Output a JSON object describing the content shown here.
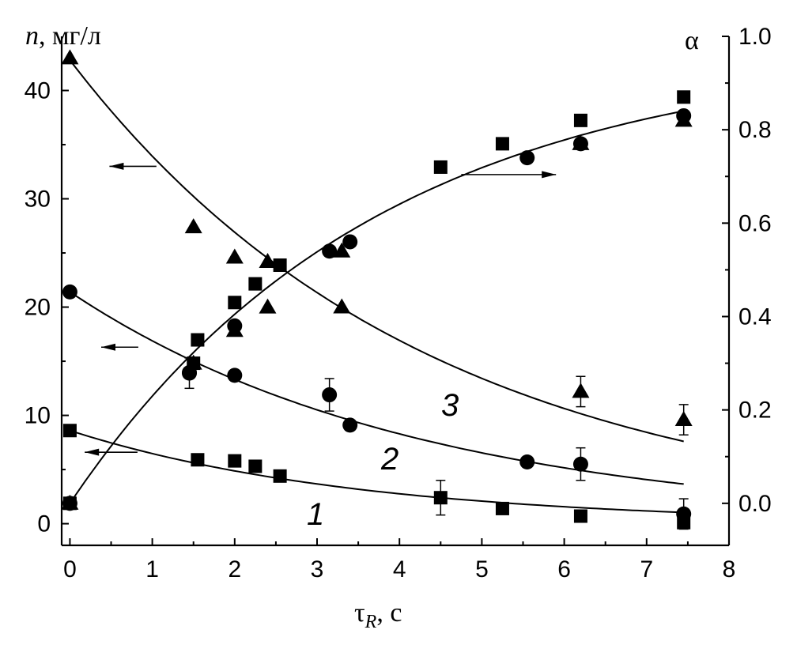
{
  "chart_data": {
    "type": "scatter",
    "x_axis": {
      "label_main": "τ",
      "label_sub": "R",
      "label_unit": ", с",
      "range": [
        -0.1,
        8
      ],
      "ticks": [
        0,
        1,
        2,
        3,
        4,
        5,
        6,
        7,
        8
      ]
    },
    "y_left": {
      "label_var": "n",
      "label_unit": ", мг/л",
      "range": [
        -2,
        45
      ],
      "ticks": [
        0,
        10,
        20,
        30,
        40
      ]
    },
    "y_right": {
      "label": "α",
      "range": [
        -0.09,
        1.0
      ],
      "ticks": [
        0.0,
        0.2,
        0.4,
        0.6,
        0.8,
        1.0
      ],
      "tick_labels": [
        "0.0",
        "0.2",
        "0.4",
        "0.6",
        "0.8",
        "1.0"
      ]
    },
    "curve_labels": [
      "1",
      "2",
      "3"
    ],
    "n_series": [
      {
        "curve": "1",
        "marker": "square",
        "axis": "left",
        "points": [
          [
            0,
            8.6
          ],
          [
            1.55,
            5.9
          ],
          [
            2.0,
            5.8
          ],
          [
            2.25,
            5.3
          ],
          [
            2.55,
            4.4
          ],
          [
            4.5,
            2.4
          ],
          [
            5.25,
            1.4
          ],
          [
            6.2,
            0.7
          ],
          [
            7.45,
            0.1
          ]
        ],
        "errors": [
          [
            4.5,
            1.6
          ]
        ],
        "fit": {
          "a": 8.6,
          "k": 0.284
        }
      },
      {
        "curve": "2",
        "marker": "circle",
        "axis": "left",
        "points": [
          [
            0,
            21.4
          ],
          [
            1.45,
            13.9
          ],
          [
            2.0,
            13.7
          ],
          [
            3.15,
            11.9
          ],
          [
            3.4,
            9.1
          ],
          [
            5.55,
            5.7
          ],
          [
            6.2,
            5.5
          ],
          [
            7.45,
            0.9
          ]
        ],
        "errors": [
          [
            1.45,
            1.4
          ],
          [
            3.15,
            1.5
          ],
          [
            6.2,
            1.5
          ],
          [
            7.45,
            1.4
          ]
        ],
        "fit": {
          "a": 21.4,
          "k": 0.237
        }
      },
      {
        "curve": "3",
        "marker": "triangle",
        "axis": "left",
        "points": [
          [
            0,
            43.0
          ],
          [
            1.5,
            27.4
          ],
          [
            2.0,
            24.6
          ],
          [
            2.4,
            24.2
          ],
          [
            3.3,
            20.0
          ],
          [
            6.2,
            12.2
          ],
          [
            7.45,
            9.6
          ]
        ],
        "errors": [
          [
            6.2,
            1.4
          ],
          [
            7.45,
            1.4
          ]
        ],
        "fit": {
          "a": 42.8,
          "k": 0.232
        }
      }
    ],
    "alpha_series": [
      {
        "marker": "square",
        "points": [
          [
            0,
            0.0
          ],
          [
            1.5,
            0.3
          ],
          [
            1.55,
            0.35
          ],
          [
            2.0,
            0.43
          ],
          [
            2.25,
            0.47
          ],
          [
            2.55,
            0.51
          ],
          [
            4.5,
            0.72
          ],
          [
            5.25,
            0.77
          ],
          [
            6.2,
            0.82
          ],
          [
            7.45,
            0.87
          ]
        ]
      },
      {
        "marker": "circle",
        "points": [
          [
            0,
            0.0
          ],
          [
            1.45,
            0.28
          ],
          [
            2.0,
            0.38
          ],
          [
            3.15,
            0.54
          ],
          [
            3.4,
            0.56
          ],
          [
            5.55,
            0.74
          ],
          [
            6.2,
            0.77
          ],
          [
            7.45,
            0.83
          ]
        ]
      },
      {
        "marker": "triangle",
        "points": [
          [
            0,
            0.0
          ],
          [
            1.5,
            0.3
          ],
          [
            2.0,
            0.37
          ],
          [
            2.4,
            0.42
          ],
          [
            3.3,
            0.54
          ],
          [
            6.2,
            0.77
          ],
          [
            7.45,
            0.82
          ]
        ]
      }
    ],
    "alpha_fit": {
      "amax": 0.97,
      "k": 0.27
    },
    "arrows": [
      {
        "curve": "3",
        "direction": "left",
        "x": [
          1.05,
          0.48
        ],
        "y": 33.0,
        "axis": "left"
      },
      {
        "curve": "2",
        "direction": "left",
        "x": [
          0.83,
          0.38
        ],
        "y": 16.3,
        "axis": "left"
      },
      {
        "curve": "1",
        "direction": "left",
        "x": [
          0.82,
          0.18
        ],
        "y": 6.6,
        "axis": "left"
      },
      {
        "curve": "alpha",
        "direction": "right",
        "x": [
          4.75,
          5.9
        ],
        "y": 0.704,
        "axis": "right"
      }
    ]
  }
}
